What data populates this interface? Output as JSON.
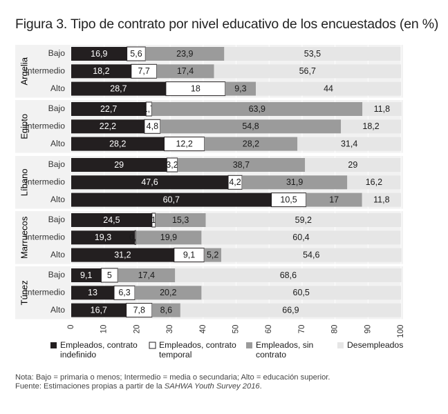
{
  "title": "Figura 3. Tipo de contrato por nivel educativo de los encuestados (en %)",
  "notes": {
    "nota": "Nota: Bajo = primaria o menos; Intermedio = media o secundaria; Alto = educación superior.",
    "fuente_prefix": "Fuente: Estimaciones propias a partir de la ",
    "fuente_italic": "SAHWA Youth Survey 2016",
    "fuente_suffix": "."
  },
  "chart_data": {
    "type": "bar",
    "orientation": "horizontal",
    "stacked": true,
    "xlim": [
      0,
      100
    ],
    "xticks": [
      "0",
      "10",
      "20",
      "30",
      "40",
      "50",
      "60",
      "70",
      "80",
      "90",
      "100"
    ],
    "legend_position": "bottom",
    "colors": [
      "#231f20",
      "#ffffff",
      "#9b9b9b",
      "#e6e6e6"
    ],
    "legend": [
      {
        "name": "Empleados, contrato indefinido",
        "lines": [
          "Empleados, contrato",
          "indefinido"
        ]
      },
      {
        "name": "Empleados, contrato temporal",
        "lines": [
          "Empleados, contrato",
          "temporal"
        ]
      },
      {
        "name": "Empleados, sin contrato",
        "lines": [
          "Empleados, sin",
          "contrato"
        ]
      },
      {
        "name": "Desempleados",
        "lines": [
          "Desempleados"
        ]
      }
    ],
    "groups": [
      {
        "country": "Argelia",
        "rows": [
          {
            "level": "Bajo",
            "values": [
              16.9,
              5.6,
              23.9,
              53.5
            ],
            "labels": [
              "16,9",
              "5,6",
              "23,9",
              "53,5"
            ]
          },
          {
            "level": "Intermedio",
            "values": [
              18.2,
              7.7,
              17.4,
              56.7
            ],
            "labels": [
              "18,2",
              "7,7",
              "17,4",
              "56,7"
            ]
          },
          {
            "level": "Alto",
            "values": [
              28.7,
              18,
              9.3,
              44
            ],
            "labels": [
              "28,7",
              "18",
              "9,3",
              "44"
            ]
          }
        ]
      },
      {
        "country": "Egipto",
        "rows": [
          {
            "level": "Bajo",
            "values": [
              22.7,
              1.7,
              63.9,
              11.8
            ],
            "labels": [
              "22,7",
              "1,7",
              "63,9",
              "11,8"
            ]
          },
          {
            "level": "Intermedio",
            "values": [
              22.2,
              4.8,
              54.8,
              18.2
            ],
            "labels": [
              "22,2",
              "4,8",
              "54,8",
              "18,2"
            ]
          },
          {
            "level": "Alto",
            "values": [
              28.2,
              12.2,
              28.2,
              31.4
            ],
            "labels": [
              "28,2",
              "12,2",
              "28,2",
              "31,4"
            ]
          }
        ]
      },
      {
        "country": "Líbano",
        "rows": [
          {
            "level": "Bajo",
            "values": [
              29,
              3.2,
              38.7,
              29
            ],
            "labels": [
              "29",
              "3,2",
              "38,7",
              "29"
            ]
          },
          {
            "level": "Intermedio",
            "values": [
              47.6,
              4.2,
              31.9,
              16.2
            ],
            "labels": [
              "47,6",
              "4,2",
              "31,9",
              "16,2"
            ]
          },
          {
            "level": "Alto",
            "values": [
              60.7,
              10.5,
              17,
              11.8
            ],
            "labels": [
              "60,7",
              "10,5",
              "17",
              "11,8"
            ]
          }
        ]
      },
      {
        "country": "Marruecos",
        "rows": [
          {
            "level": "Bajo",
            "values": [
              24.5,
              1,
              15.3,
              59.2
            ],
            "labels": [
              "24,5",
              "1",
              "15,3",
              "59,2"
            ]
          },
          {
            "level": "Intermedio",
            "values": [
              19.3,
              0.3,
              19.9,
              60.4
            ],
            "labels": [
              "19,3",
              "0,3",
              "19,9",
              "60,4"
            ]
          },
          {
            "level": "Alto",
            "values": [
              31.2,
              9.1,
              5.2,
              54.6
            ],
            "labels": [
              "31,2",
              "9,1",
              "5,2",
              "54,6"
            ]
          }
        ]
      },
      {
        "country": "Túnez",
        "rows": [
          {
            "level": "Bajo",
            "values": [
              9.1,
              5,
              17.4,
              68.6
            ],
            "labels": [
              "9,1",
              "5",
              "17,4",
              "68,6"
            ]
          },
          {
            "level": "Intermedio",
            "values": [
              13,
              6.3,
              20.2,
              60.5
            ],
            "labels": [
              "13",
              "6,3",
              "20,2",
              "60,5"
            ]
          },
          {
            "level": "Alto",
            "values": [
              16.7,
              7.8,
              8.6,
              66.9
            ],
            "labels": [
              "16,7",
              "7,8",
              "8,6",
              "66,9"
            ]
          }
        ]
      }
    ]
  }
}
